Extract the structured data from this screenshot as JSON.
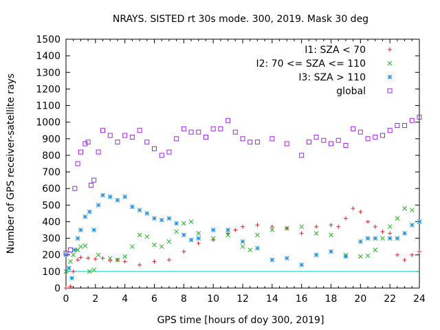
{
  "chart_data": {
    "type": "scatter",
    "title": "NRAYS. SISTED rt 30s mode. 300, 2019. Mask 30 deg",
    "xlabel": "GPS time [hours of doy 300, 2019]",
    "ylabel": "Number of GPS receiver-satellite rays",
    "xlim": [
      0,
      24
    ],
    "ylim": [
      0,
      1500
    ],
    "xticks": [
      "0",
      "2",
      "4",
      "6",
      "8",
      "10",
      "12",
      "14",
      "16",
      "18",
      "20",
      "22",
      "24"
    ],
    "yticks": [
      "0",
      "100",
      "200",
      "300",
      "400",
      "500",
      "600",
      "700",
      "800",
      "900",
      "1000",
      "1100",
      "1200",
      "1300",
      "1400",
      "1500"
    ],
    "reference_line": {
      "y": 100,
      "color": "#00c8c8"
    },
    "series": [
      {
        "name": "I1: SZA < 70",
        "marker": "+",
        "color": "#e02020",
        "x": [
          0,
          0.3,
          0.5,
          0.8,
          1.0,
          1.5,
          2.0,
          2.5,
          3.0,
          3.5,
          4.0,
          5.0,
          6.0,
          7.0,
          8.0,
          9.0,
          10.0,
          11.0,
          11.5,
          12.0,
          13.0,
          14.0,
          15.0,
          16.0,
          17.0,
          18.0,
          18.5,
          19.0,
          19.5,
          20.0,
          20.5,
          21.0,
          21.5,
          22.0,
          22.5,
          23.0,
          23.5,
          24.0
        ],
        "y": [
          0,
          10,
          100,
          170,
          185,
          180,
          175,
          180,
          165,
          170,
          160,
          140,
          160,
          170,
          220,
          270,
          290,
          330,
          350,
          370,
          380,
          370,
          360,
          330,
          370,
          380,
          370,
          420,
          480,
          460,
          400,
          370,
          340,
          330,
          200,
          170,
          200,
          220
        ]
      },
      {
        "name": "I2: 70 <= SZA <= 110",
        "marker": "x",
        "color": "#20b020",
        "x": [
          0,
          0.3,
          0.5,
          0.8,
          1.0,
          1.3,
          1.6,
          1.9,
          2.2,
          3.0,
          3.5,
          4.0,
          4.5,
          5.0,
          5.5,
          6.0,
          6.5,
          7.0,
          7.5,
          8.0,
          8.5,
          9.0,
          10.0,
          11.0,
          12.0,
          12.5,
          13.0,
          14.0,
          15.0,
          16.0,
          17.0,
          18.0,
          19.0,
          20.0,
          20.5,
          21.0,
          21.5,
          22.0,
          22.5,
          23.0,
          23.5,
          24.0
        ],
        "y": [
          100,
          160,
          200,
          230,
          250,
          255,
          100,
          110,
          200,
          180,
          170,
          190,
          250,
          320,
          310,
          260,
          250,
          280,
          340,
          390,
          400,
          330,
          300,
          320,
          250,
          230,
          320,
          350,
          360,
          370,
          330,
          320,
          200,
          190,
          195,
          230,
          300,
          370,
          420,
          480,
          470,
          400
        ]
      },
      {
        "name": "I3: SZA > 110",
        "marker": "*",
        "color": "#2090e0",
        "x": [
          0,
          0.2,
          0.4,
          0.6,
          0.8,
          1.0,
          1.3,
          1.6,
          1.9,
          2.2,
          2.5,
          3.0,
          3.5,
          4.0,
          4.5,
          5.0,
          5.5,
          6.0,
          6.5,
          7.0,
          7.5,
          8.0,
          8.5,
          9.0,
          10.0,
          11.0,
          12.0,
          13.0,
          14.0,
          15.0,
          16.0,
          17.0,
          18.0,
          19.0,
          20.0,
          20.5,
          21.0,
          22.0,
          22.5,
          23.0,
          23.5,
          24.0
        ],
        "y": [
          200,
          120,
          60,
          230,
          300,
          350,
          430,
          460,
          350,
          500,
          560,
          550,
          530,
          550,
          490,
          470,
          450,
          420,
          410,
          420,
          390,
          320,
          290,
          300,
          350,
          350,
          280,
          240,
          170,
          180,
          140,
          200,
          220,
          190,
          280,
          300,
          300,
          300,
          300,
          330,
          380,
          400
        ]
      },
      {
        "name": "global",
        "marker": "square",
        "color": "#a020f0",
        "x": [
          0,
          0.3,
          0.6,
          0.8,
          1.0,
          1.3,
          1.5,
          1.7,
          1.9,
          2.2,
          2.5,
          3.0,
          3.5,
          4.0,
          4.5,
          5.0,
          5.5,
          6.0,
          6.5,
          7.0,
          7.5,
          8.0,
          8.5,
          9.0,
          9.5,
          10.0,
          10.5,
          11.0,
          11.5,
          12.0,
          12.5,
          13.0,
          14.0,
          15.0,
          16.0,
          16.5,
          17.0,
          17.5,
          18.0,
          18.5,
          19.0,
          19.5,
          20.0,
          20.5,
          21.0,
          21.5,
          22.0,
          22.5,
          23.0,
          23.5,
          24.0
        ],
        "y": [
          210,
          230,
          600,
          750,
          820,
          870,
          880,
          620,
          650,
          820,
          950,
          920,
          880,
          920,
          910,
          950,
          880,
          840,
          800,
          820,
          900,
          960,
          940,
          940,
          910,
          960,
          960,
          1010,
          940,
          900,
          880,
          880,
          900,
          870,
          800,
          880,
          910,
          890,
          870,
          890,
          860,
          960,
          940,
          900,
          910,
          920,
          950,
          980,
          980,
          1010,
          1030
        ]
      }
    ]
  }
}
